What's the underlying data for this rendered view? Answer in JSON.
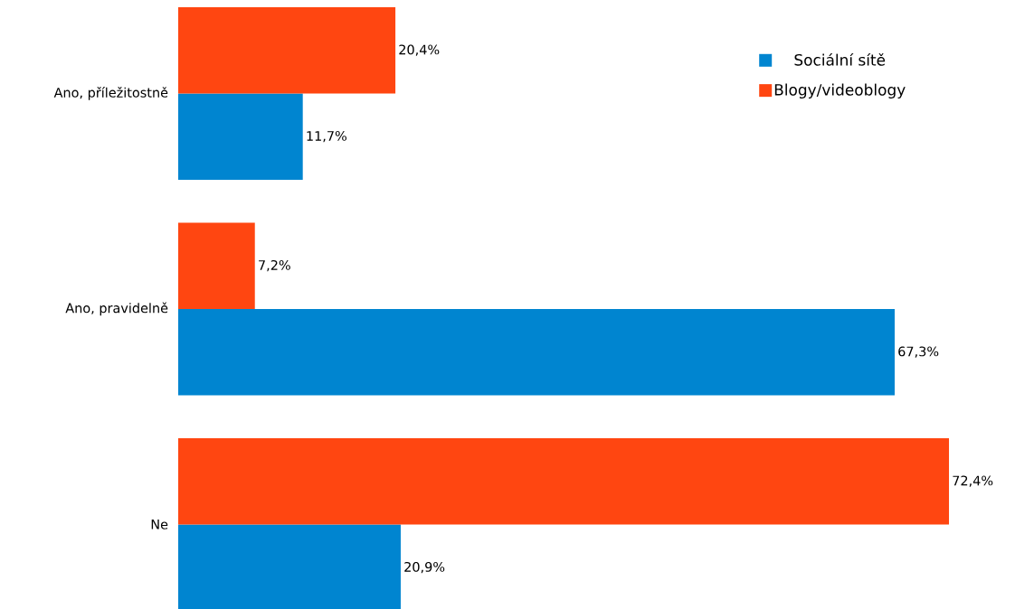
{
  "chart_data": {
    "type": "bar",
    "orientation": "horizontal",
    "categories": [
      "Ano, příležitostně",
      "Ano, pravidelně",
      "Ne"
    ],
    "series": [
      {
        "name": "Sociální sítě",
        "color": "#0085d0",
        "values": [
          11.7,
          67.3,
          20.9
        ],
        "value_labels": [
          "11,7%",
          "67,3%",
          "20,9%"
        ]
      },
      {
        "name": "Blogy/videoblogy",
        "color": "#ff4611",
        "values": [
          20.4,
          7.2,
          72.4
        ],
        "value_labels": [
          "20,4%",
          "7,2%",
          "72,4%"
        ]
      }
    ],
    "legend": "top right"
  }
}
